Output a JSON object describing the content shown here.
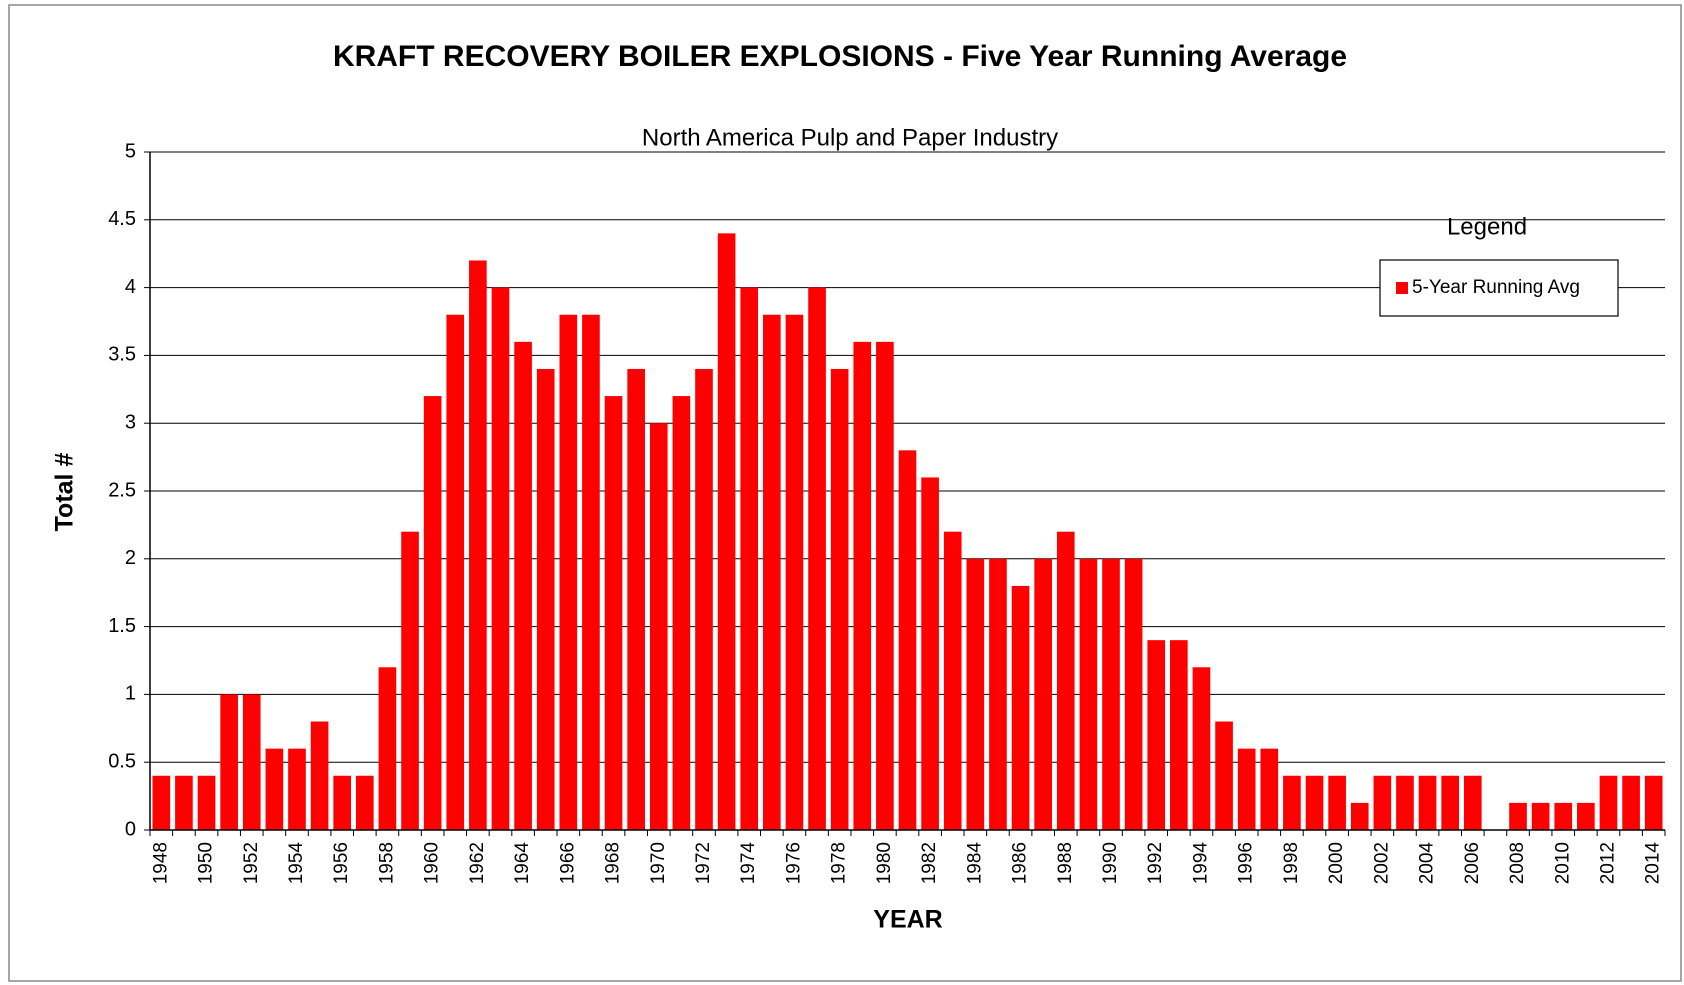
{
  "chart_data": {
    "type": "bar",
    "title": "KRAFT RECOVERY BOILER EXPLOSIONS  - Five Year Running Average",
    "subtitle": "North America Pulp and Paper Industry",
    "x_label": "YEAR",
    "y_label": "Total #",
    "legend_title": "Legend",
    "legend": "upper right",
    "grid": true,
    "categories": [
      "1948",
      null,
      "1950",
      null,
      "1952",
      null,
      "1954",
      null,
      "1956",
      null,
      "1958",
      null,
      "1960",
      null,
      "1962",
      null,
      "1964",
      null,
      "1966",
      null,
      "1968",
      null,
      "1970",
      null,
      "1972",
      null,
      "1974",
      null,
      "1976",
      null,
      "1978",
      null,
      "1980",
      null,
      "1982",
      null,
      "1984",
      null,
      "1986",
      null,
      "1988",
      null,
      "1990",
      null,
      "1992",
      null,
      "1994",
      null,
      "1996",
      null,
      "1998",
      null,
      "2000",
      null,
      "2002",
      null,
      "2004",
      null,
      "2006",
      null,
      "2008",
      null,
      "2010",
      null,
      "2012",
      null,
      "2014"
    ],
    "series": [
      {
        "name": "5-Year Running Avg",
        "color": "#ff0000",
        "values": [
          0.4,
          0.4,
          0.4,
          1.0,
          1.0,
          0.6,
          0.6,
          0.8,
          0.4,
          0.4,
          1.2,
          2.2,
          3.2,
          3.8,
          4.2,
          4.0,
          3.6,
          3.4,
          3.8,
          3.8,
          3.2,
          3.4,
          3.0,
          3.2,
          3.4,
          4.4,
          4.0,
          3.8,
          3.8,
          4.0,
          3.4,
          3.6,
          3.6,
          2.8,
          2.6,
          2.2,
          2.0,
          2.0,
          1.8,
          2.0,
          2.2,
          2.0,
          2.0,
          2.0,
          1.4,
          1.4,
          1.2,
          0.8,
          0.6,
          0.6,
          0.4,
          0.4,
          0.4,
          0.2,
          0.4,
          0.4,
          0.4,
          0.4,
          0.4,
          0,
          0.2,
          0.2,
          0.2,
          0.2,
          0.4,
          0.4,
          0.4
        ]
      }
    ],
    "ylim": [
      0,
      5
    ],
    "yticks": [
      0,
      0.5,
      1,
      1.5,
      2,
      2.5,
      3,
      3.5,
      4,
      4.5,
      5
    ]
  }
}
